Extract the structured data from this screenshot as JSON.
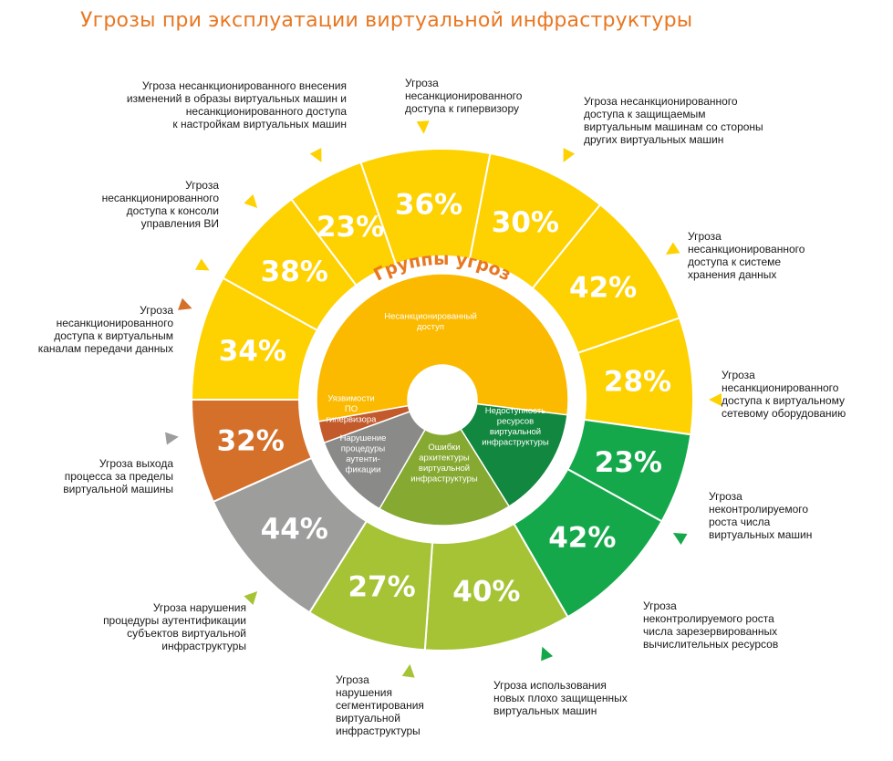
{
  "title": "Угрозы при эксплуатации виртуальной инфраструктуры",
  "center_label": "Группы угроз",
  "colors": {
    "title": "#e87722",
    "yellow": "#fed100",
    "orange": "#d5702a",
    "gray": "#9d9d9c",
    "light_green": "#a5c335",
    "green": "#14a84a",
    "inner_access": "#fbba00",
    "inner_vuln": "#c25a2c",
    "inner_auth": "#8a8a89",
    "inner_arch": "#86a932",
    "inner_avail": "#12873f"
  },
  "groups": [
    {
      "label": "Несанкционированный доступ",
      "lines": [
        "Несанкционированный",
        "доступ"
      ],
      "color": "inner_access"
    },
    {
      "label": "Недоступность ресурсов виртуальной инфраструктуры",
      "lines": [
        "Недоступность",
        "ресурсов",
        "виртуальной",
        "инфраструктуры"
      ],
      "color": "inner_avail"
    },
    {
      "label": "Ошибки архитектуры виртуальной инфраструктуры",
      "lines": [
        "Ошибки",
        "архитектуры",
        "виртуальной",
        "инфраструктуры"
      ],
      "color": "inner_arch"
    },
    {
      "label": "Нарушение процедуры аутентификации",
      "lines": [
        "Нарушение",
        "процедуры",
        "аутенти-",
        "фикации"
      ],
      "color": "inner_auth"
    },
    {
      "label": "Уязвимости ПО гипервизора",
      "lines": [
        "Уязвимости",
        "ПО",
        "гипервизора"
      ],
      "color": "inner_vuln"
    }
  ],
  "chart_data": {
    "type": "pie",
    "series": [
      {
        "label": "Угроза несанкционированного доступа к гипервизору",
        "value": 36,
        "display": "36%",
        "color": "yellow"
      },
      {
        "label": "Угроза несанкционированного доступа к защищаемым виртуальным машинам со стороны других виртуальных машин",
        "value": 30,
        "display": "30%",
        "color": "yellow"
      },
      {
        "label": "Угроза несанкционированного доступа к системе хранения данных",
        "value": 42,
        "display": "42%",
        "color": "yellow"
      },
      {
        "label": "Угроза несанкционированного доступа к виртуальному сетевому оборудованию",
        "value": 28,
        "display": "28%",
        "color": "yellow"
      },
      {
        "label": "Угроза неконтролируемого роста числа виртуальных машин",
        "value": 23,
        "display": "23%",
        "color": "green"
      },
      {
        "label": "Угроза неконтролируемого роста числа зарезервированных вычислительных ресурсов",
        "value": 42,
        "display": "42%",
        "color": "green"
      },
      {
        "label": "Угроза использования новых плохо защищенных виртуальных машин",
        "value": 40,
        "display": "40%",
        "color": "light_green"
      },
      {
        "label": "Угроза нарушения сегментирования виртуальной инфраструктуры",
        "value": 27,
        "display": "27%",
        "color": "light_green"
      },
      {
        "label": "Угроза нарушения процедуры аутентификации субъектов виртуальной инфраструктуры",
        "value": 44,
        "display": "44%",
        "color": "gray"
      },
      {
        "label": "Угроза выхода процесса за пределы виртуальной машины",
        "value": 32,
        "display": "32%",
        "color": "orange"
      },
      {
        "label": "Угроза несанкционированного доступа к виртуальным каналам передачи данных",
        "value": 34,
        "display": "34%",
        "color": "yellow"
      },
      {
        "label": "Угроза несанкционированного доступа к консоли управления ВИ",
        "value": 38,
        "display": "38%",
        "color": "yellow"
      },
      {
        "label": "Угроза несанкционированного внесения изменений в образы виртуальных машин и несанкционированного доступа к настройкам виртуальных машин",
        "value": 23,
        "display": "23%",
        "color": "yellow"
      }
    ]
  },
  "callouts": [
    {
      "lines": [
        "Угроза",
        "несанкционированного",
        "доступа к гипервизору"
      ]
    },
    {
      "lines": [
        "Угроза несанкционированного",
        "доступа к защищаемым",
        "виртуальным машинам со стороны",
        "других виртуальных машин"
      ]
    },
    {
      "lines": [
        "Угроза",
        "несанкционированного",
        "доступа к системе",
        "хранения данных"
      ]
    },
    {
      "lines": [
        "Угроза",
        "несанкционированного",
        "доступа к виртуальному",
        "сетевому оборудованию"
      ]
    },
    {
      "lines": [
        "Угроза",
        "неконтролируемого",
        "роста числа",
        "виртуальных машин"
      ]
    },
    {
      "lines": [
        "Угроза",
        "неконтролируемого роста",
        "числа зарезервированных",
        "вычислительных ресурсов"
      ]
    },
    {
      "lines": [
        "Угроза использования",
        "новых плохо защищенных",
        "виртуальных машин"
      ]
    },
    {
      "lines": [
        "Угроза",
        "нарушения",
        "сегментирования",
        "виртуальной",
        "инфраструктуры"
      ]
    },
    {
      "lines": [
        "Угроза нарушения",
        "процедуры аутентификации",
        "субъектов виртуальной",
        "инфраструктуры"
      ]
    },
    {
      "lines": [
        "Угроза выхода",
        "процесса за пределы",
        "виртуальной машины"
      ]
    },
    {
      "lines": [
        "Угроза",
        "несанкционированного",
        "доступа к виртуальным",
        "каналам передачи данных"
      ]
    },
    {
      "lines": [
        "Угроза",
        "несанкционированного",
        "доступа к консоли",
        "управления ВИ"
      ]
    },
    {
      "lines": [
        "Угроза несанкционированного внесения",
        "изменений в образы виртуальных машин и",
        "несанкционированного доступа",
        "к настройкам виртуальных машин"
      ]
    }
  ]
}
